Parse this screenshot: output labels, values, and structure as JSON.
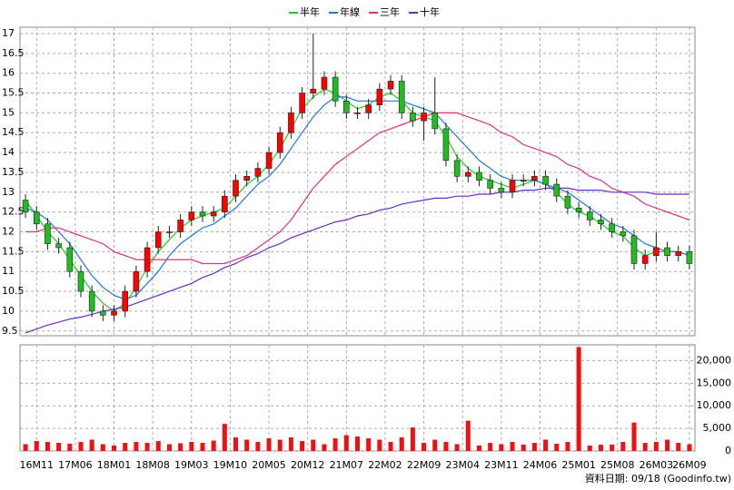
{
  "chart_data": {
    "type": "candlestick",
    "x": [
      -2,
      0,
      2,
      4,
      6,
      8,
      10,
      12,
      14,
      16,
      18,
      20,
      22,
      24,
      26,
      28,
      30,
      32,
      34,
      36,
      38,
      40,
      42,
      44,
      46,
      48,
      50,
      52,
      54,
      56,
      58,
      60,
      62,
      64,
      66,
      68,
      70,
      72,
      74,
      76,
      78,
      80,
      82,
      84,
      86,
      88,
      90,
      92,
      94,
      96,
      98,
      100,
      102,
      104,
      106,
      108,
      110,
      112,
      114,
      116,
      118
    ],
    "xlim": [
      -3,
      119
    ],
    "xticks": [
      {
        "value": 0,
        "label": "16M11"
      },
      {
        "value": 7,
        "label": "17M06"
      },
      {
        "value": 14,
        "label": "18M01"
      },
      {
        "value": 21,
        "label": "18M08"
      },
      {
        "value": 28,
        "label": "19M03"
      },
      {
        "value": 35,
        "label": "19M10"
      },
      {
        "value": 42,
        "label": "20M05"
      },
      {
        "value": 49,
        "label": "20M12"
      },
      {
        "value": 56,
        "label": "21M07"
      },
      {
        "value": 63,
        "label": "22M02"
      },
      {
        "value": 70,
        "label": "22M09"
      },
      {
        "value": 77,
        "label": "23M04"
      },
      {
        "value": 84,
        "label": "23M11"
      },
      {
        "value": 91,
        "label": "24M06"
      },
      {
        "value": 98,
        "label": "25M01"
      },
      {
        "value": 105,
        "label": "25M08"
      },
      {
        "value": 112,
        "label": "26M03"
      },
      {
        "value": 118,
        "label": "26M09"
      }
    ],
    "ylim": [
      9.38,
      17.16
    ],
    "yticks": [
      9.5,
      10,
      10.5,
      11,
      11.5,
      12,
      12.5,
      13,
      13.5,
      14,
      14.5,
      15,
      15.5,
      16,
      16.5,
      17
    ],
    "grid": true,
    "up_color": "#ff0000",
    "down_color": "#22bb22",
    "open": [
      12.8,
      12.5,
      12.2,
      11.7,
      11.6,
      11.0,
      10.5,
      10.0,
      9.9,
      10.0,
      10.5,
      11.0,
      11.6,
      12.0,
      12.0,
      12.3,
      12.5,
      12.4,
      12.5,
      12.9,
      13.3,
      13.4,
      13.6,
      14.0,
      14.5,
      15.0,
      15.5,
      15.6,
      15.9,
      15.3,
      15.0,
      15.0,
      15.2,
      15.6,
      15.8,
      15.0,
      14.8,
      15.0,
      14.6,
      13.8,
      13.4,
      13.5,
      13.3,
      13.1,
      13.0,
      13.3,
      13.3,
      13.4,
      13.2,
      12.9,
      12.6,
      12.5,
      12.3,
      12.2,
      12.0,
      11.9,
      11.2,
      11.4,
      11.6,
      11.4,
      11.5
    ],
    "high": [
      12.95,
      12.65,
      12.35,
      11.85,
      11.75,
      11.15,
      10.65,
      10.15,
      10.15,
      10.65,
      11.15,
      11.75,
      12.15,
      12.15,
      12.45,
      12.65,
      12.65,
      12.65,
      13.05,
      13.45,
      13.55,
      13.75,
      14.15,
      14.65,
      15.15,
      15.65,
      17.0,
      16.05,
      16.05,
      15.45,
      15.15,
      15.35,
      15.75,
      15.95,
      15.95,
      15.15,
      15.15,
      15.9,
      14.75,
      13.95,
      13.65,
      13.65,
      13.45,
      13.25,
      13.45,
      13.45,
      13.55,
      13.55,
      13.35,
      13.05,
      12.75,
      12.65,
      12.45,
      12.35,
      12.15,
      12.05,
      11.55,
      12.0,
      11.75,
      11.65,
      11.65
    ],
    "low": [
      12.35,
      12.05,
      11.55,
      11.45,
      10.85,
      10.35,
      9.85,
      9.75,
      9.75,
      9.85,
      10.35,
      10.85,
      11.45,
      11.85,
      11.85,
      12.15,
      12.25,
      12.25,
      12.35,
      12.75,
      13.15,
      13.25,
      13.45,
      13.85,
      14.35,
      14.85,
      15.35,
      15.45,
      15.15,
      14.85,
      14.85,
      14.85,
      15.05,
      15.45,
      14.85,
      14.65,
      14.3,
      14.45,
      13.65,
      13.25,
      13.25,
      13.15,
      12.95,
      12.85,
      12.85,
      13.15,
      13.15,
      13.05,
      12.75,
      12.45,
      12.35,
      12.15,
      12.05,
      11.85,
      11.75,
      11.05,
      11.05,
      11.25,
      11.25,
      11.25,
      11.05
    ],
    "close": [
      12.5,
      12.2,
      11.7,
      11.6,
      11.0,
      10.5,
      10.0,
      9.9,
      10.0,
      10.5,
      11.0,
      11.6,
      12.0,
      12.0,
      12.3,
      12.5,
      12.4,
      12.5,
      12.9,
      13.3,
      13.4,
      13.6,
      14.0,
      14.5,
      15.0,
      15.5,
      15.6,
      15.9,
      15.3,
      15.0,
      15.0,
      15.2,
      15.6,
      15.8,
      15.0,
      14.8,
      15.0,
      14.6,
      13.8,
      13.4,
      13.5,
      13.3,
      13.1,
      13.0,
      13.3,
      13.3,
      13.4,
      13.2,
      12.9,
      12.6,
      12.5,
      12.3,
      12.2,
      12.0,
      11.9,
      11.2,
      11.4,
      11.6,
      11.4,
      11.5,
      11.2
    ],
    "series": [
      {
        "name": "半年",
        "color": "#22cc22",
        "values": [
          12.8,
          12.4,
          12.0,
          11.7,
          11.3,
          10.9,
          10.5,
          10.2,
          10.0,
          10.2,
          10.6,
          11.1,
          11.5,
          11.8,
          12.1,
          12.3,
          12.4,
          12.5,
          12.6,
          12.9,
          13.2,
          13.4,
          13.7,
          14.1,
          14.6,
          15.1,
          15.4,
          15.6,
          15.5,
          15.3,
          15.1,
          15.2,
          15.4,
          15.5,
          15.3,
          15.0,
          14.9,
          14.8,
          14.4,
          13.9,
          13.6,
          13.4,
          13.3,
          13.2,
          13.1,
          13.2,
          13.3,
          13.2,
          13.0,
          12.7,
          12.5,
          12.4,
          12.2,
          12.0,
          11.9,
          11.6,
          11.4,
          11.5,
          11.5,
          11.5,
          11.4
        ]
      },
      {
        "name": "年線",
        "color": "#1e78dc",
        "values": [
          12.6,
          12.5,
          12.3,
          12.0,
          11.7,
          11.3,
          10.9,
          10.6,
          10.4,
          10.3,
          10.4,
          10.7,
          11.0,
          11.4,
          11.7,
          11.9,
          12.1,
          12.2,
          12.4,
          12.6,
          12.9,
          13.2,
          13.4,
          13.7,
          14.1,
          14.5,
          14.9,
          15.2,
          15.4,
          15.4,
          15.3,
          15.3,
          15.3,
          15.3,
          15.3,
          15.2,
          15.1,
          15.0,
          14.7,
          14.4,
          14.1,
          13.8,
          13.6,
          13.4,
          13.3,
          13.3,
          13.3,
          13.2,
          13.1,
          13.0,
          12.8,
          12.6,
          12.4,
          12.2,
          12.1,
          11.9,
          11.7,
          11.6,
          11.5,
          11.5,
          11.4
        ]
      },
      {
        "name": "三年",
        "color": "#e0307a",
        "values": [
          12.0,
          12.0,
          12.1,
          12.1,
          12.0,
          11.9,
          11.8,
          11.7,
          11.5,
          11.4,
          11.3,
          11.3,
          11.3,
          11.3,
          11.3,
          11.3,
          11.2,
          11.2,
          11.2,
          11.3,
          11.4,
          11.6,
          11.8,
          12.0,
          12.3,
          12.7,
          13.1,
          13.4,
          13.7,
          13.9,
          14.1,
          14.3,
          14.5,
          14.6,
          14.7,
          14.8,
          14.9,
          15.0,
          15.0,
          15.0,
          14.9,
          14.8,
          14.7,
          14.5,
          14.4,
          14.2,
          14.1,
          14.0,
          13.9,
          13.7,
          13.6,
          13.4,
          13.3,
          13.1,
          13.0,
          12.9,
          12.7,
          12.6,
          12.5,
          12.4,
          12.3
        ]
      },
      {
        "name": "十年",
        "color": "#6a2cc8",
        "values": [
          9.45,
          9.55,
          9.65,
          9.72,
          9.8,
          9.85,
          9.92,
          10.0,
          10.05,
          10.1,
          10.2,
          10.3,
          10.4,
          10.5,
          10.6,
          10.7,
          10.85,
          10.95,
          11.1,
          11.2,
          11.35,
          11.45,
          11.6,
          11.7,
          11.85,
          11.95,
          12.05,
          12.15,
          12.25,
          12.3,
          12.4,
          12.45,
          12.55,
          12.6,
          12.7,
          12.75,
          12.8,
          12.85,
          12.85,
          12.9,
          12.9,
          12.95,
          12.95,
          13.0,
          13.0,
          13.05,
          13.05,
          13.1,
          13.1,
          13.1,
          13.05,
          13.05,
          13.05,
          13.0,
          13.0,
          13.0,
          13.0,
          12.95,
          12.95,
          12.95,
          12.95
        ]
      }
    ],
    "volume": {
      "color": "#ee1111",
      "ylim": [
        0,
        23500
      ],
      "yticks": [
        0,
        {
          "value": 5000,
          "label": "5,000"
        },
        {
          "value": 10000,
          "label": "10,000"
        },
        {
          "value": 15000,
          "label": "15,000"
        },
        {
          "value": 20000,
          "label": "20,000"
        }
      ],
      "values": [
        1500,
        2200,
        2000,
        1800,
        1600,
        2000,
        2500,
        1500,
        1200,
        1800,
        2000,
        1800,
        2200,
        1500,
        1700,
        2000,
        1800,
        2300,
        6000,
        3000,
        2500,
        2000,
        2800,
        2500,
        3000,
        2200,
        2500,
        1500,
        2800,
        3500,
        3200,
        2800,
        2500,
        2000,
        3000,
        5200,
        1800,
        2500,
        2000,
        1500,
        6700,
        1200,
        1800,
        1500,
        2000,
        1400,
        1800,
        2500,
        1600,
        2000,
        23000,
        1200,
        1400,
        1400,
        2000,
        6300,
        1800,
        2000,
        2500,
        1800,
        1500
      ]
    },
    "note": "資料日期: 09/18  (Goodinfo.tw)"
  }
}
